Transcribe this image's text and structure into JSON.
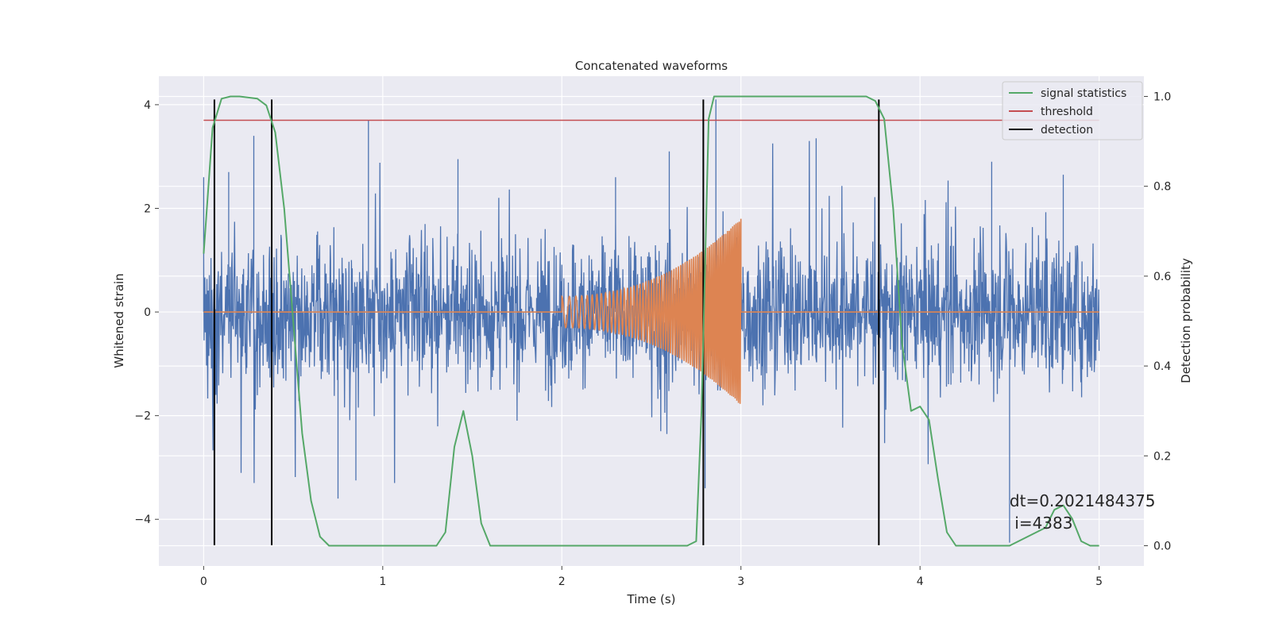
{
  "chart_data": {
    "type": "line",
    "title": "Concatenated waveforms",
    "xlabel": "Time (s)",
    "ylabel_left": "Whitened strain",
    "ylabel_right": "Detection probability",
    "xlim": [
      -0.25,
      5.25
    ],
    "ylim_left": [
      -4.9,
      4.55
    ],
    "ylim_right": [
      -0.045,
      1.045
    ],
    "x_ticks": [
      0,
      1,
      2,
      3,
      4,
      5
    ],
    "y_ticks_left": [
      -4,
      -2,
      0,
      2,
      4
    ],
    "y_ticks_right": [
      0.0,
      0.2,
      0.4,
      0.6,
      0.8,
      1.0
    ],
    "grid": true,
    "legend_placement": "top-right",
    "colors": {
      "noise": "#4c72b0",
      "template": "#dd8452",
      "signal_statistics": "#55a868",
      "threshold": "#c44e52",
      "detection": "#000000",
      "plot_background": "#eaeaf2",
      "grid": "#ffffff"
    },
    "series": [
      {
        "name": "signal statistics",
        "axis": "right",
        "x": [
          0.0,
          0.05,
          0.1,
          0.15,
          0.2,
          0.3,
          0.35,
          0.4,
          0.45,
          0.5,
          0.55,
          0.6,
          0.65,
          0.7,
          1.0,
          1.3,
          1.35,
          1.4,
          1.45,
          1.5,
          1.55,
          1.6,
          2.0,
          2.5,
          2.7,
          2.75,
          2.78,
          2.82,
          2.85,
          3.0,
          3.7,
          3.75,
          3.8,
          3.85,
          3.9,
          3.95,
          4.0,
          4.05,
          4.1,
          4.15,
          4.2,
          4.3,
          4.5,
          4.7,
          4.75,
          4.8,
          4.85,
          4.9,
          4.95,
          5.0
        ],
        "y": [
          0.65,
          0.93,
          0.995,
          1.0,
          1.0,
          0.995,
          0.98,
          0.92,
          0.75,
          0.5,
          0.25,
          0.1,
          0.02,
          0.0,
          0.0,
          0.0,
          0.03,
          0.22,
          0.3,
          0.2,
          0.05,
          0.0,
          0.0,
          0.0,
          0.0,
          0.01,
          0.3,
          0.95,
          1.0,
          1.0,
          1.0,
          0.99,
          0.95,
          0.75,
          0.45,
          0.3,
          0.31,
          0.28,
          0.15,
          0.03,
          0.0,
          0.0,
          0.0,
          0.04,
          0.08,
          0.09,
          0.06,
          0.01,
          0.0,
          0.0
        ]
      },
      {
        "name": "threshold",
        "axis": "left",
        "x": [
          0,
          5
        ],
        "y": [
          3.7,
          3.7
        ]
      },
      {
        "name": "detection",
        "axis": "left",
        "x_positions": [
          0.06,
          0.38,
          2.79,
          3.77
        ],
        "y_range": [
          -4.5,
          4.1
        ]
      },
      {
        "axis": "left",
        "kind": "noise",
        "x_range": [
          0,
          5
        ],
        "typical_amplitude": 1.0,
        "peak_excursions": [
          {
            "x": 0.0,
            "y": 2.6
          },
          {
            "x": 0.14,
            "y": 2.7
          },
          {
            "x": 0.28,
            "y": 3.4
          },
          {
            "x": 0.92,
            "y": 3.7
          },
          {
            "x": 0.75,
            "y": -3.6
          },
          {
            "x": 0.85,
            "y": -3.25
          },
          {
            "x": 1.42,
            "y": 2.95
          },
          {
            "x": 2.3,
            "y": 2.6
          },
          {
            "x": 2.6,
            "y": 3.1
          },
          {
            "x": 2.86,
            "y": 4.1
          },
          {
            "x": 2.8,
            "y": -3.4
          },
          {
            "x": 3.42,
            "y": 3.35
          },
          {
            "x": 4.4,
            "y": 2.9
          },
          {
            "x": 4.5,
            "y": -4.45
          },
          {
            "x": 4.8,
            "y": 2.65
          }
        ]
      },
      {
        "axis": "left",
        "kind": "chirp",
        "baseline": 0,
        "chirp_start": 2.0,
        "chirp_end": 3.0,
        "amplitude_start": 0.3,
        "amplitude_end": 1.8,
        "freq_start_hz": 22,
        "freq_end_hz": 110
      }
    ],
    "legend": [
      "signal statistics",
      "threshold",
      "detection"
    ],
    "annotation": {
      "line1": "dt=0.2021484375",
      "line2": " i=4383",
      "x": 4.5,
      "y": -3.75
    }
  }
}
